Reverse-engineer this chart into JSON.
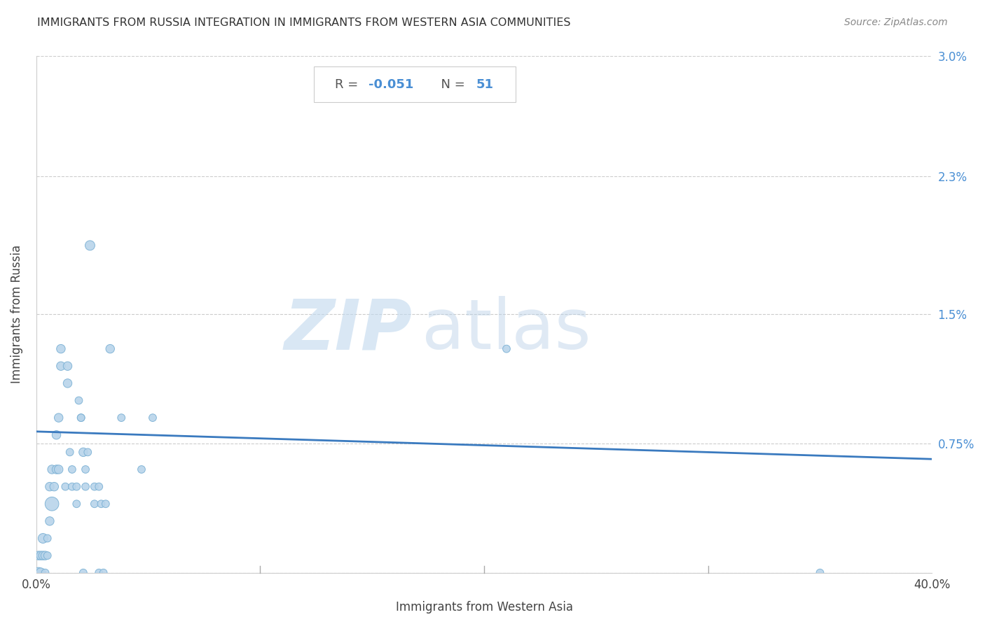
{
  "title": "IMMIGRANTS FROM RUSSIA INTEGRATION IN IMMIGRANTS FROM WESTERN ASIA COMMUNITIES",
  "source": "Source: ZipAtlas.com",
  "xlabel": "Immigrants from Western Asia",
  "ylabel": "Immigrants from Russia",
  "R_label": "R = ",
  "R_val": "-0.051",
  "N_label": "  N = ",
  "N_val": "51",
  "xlim": [
    0.0,
    0.4
  ],
  "ylim": [
    0.0,
    0.03
  ],
  "xticks": [
    0.0,
    0.1,
    0.2,
    0.3,
    0.4
  ],
  "xtick_labels": [
    "0.0%",
    "",
    "",
    "",
    "40.0%"
  ],
  "ytick_vals": [
    0.0,
    0.0075,
    0.015,
    0.023,
    0.03
  ],
  "ytick_labels_right": [
    "",
    "0.75%",
    "1.5%",
    "2.3%",
    "3.0%"
  ],
  "scatter_color": "#b8d4ea",
  "scatter_edge_color": "#7ab0d4",
  "line_color": "#3a7abf",
  "line_intercept": 0.0082,
  "line_slope": -0.004,
  "watermark_zip": "ZIP",
  "watermark_atlas": "atlas",
  "watermark_color": "#d0e4f0",
  "points": [
    [
      0.001,
      0.0
    ],
    [
      0.001,
      0.001
    ],
    [
      0.002,
      0.0
    ],
    [
      0.002,
      0.001
    ],
    [
      0.003,
      0.001
    ],
    [
      0.003,
      0.002
    ],
    [
      0.004,
      0.0
    ],
    [
      0.004,
      0.001
    ],
    [
      0.005,
      0.001
    ],
    [
      0.005,
      0.002
    ],
    [
      0.006,
      0.003
    ],
    [
      0.006,
      0.005
    ],
    [
      0.007,
      0.004
    ],
    [
      0.007,
      0.006
    ],
    [
      0.008,
      0.005
    ],
    [
      0.009,
      0.006
    ],
    [
      0.009,
      0.008
    ],
    [
      0.01,
      0.006
    ],
    [
      0.01,
      0.009
    ],
    [
      0.011,
      0.012
    ],
    [
      0.011,
      0.013
    ],
    [
      0.013,
      0.005
    ],
    [
      0.014,
      0.011
    ],
    [
      0.014,
      0.012
    ],
    [
      0.015,
      0.007
    ],
    [
      0.016,
      0.005
    ],
    [
      0.016,
      0.006
    ],
    [
      0.018,
      0.004
    ],
    [
      0.018,
      0.005
    ],
    [
      0.019,
      0.01
    ],
    [
      0.02,
      0.009
    ],
    [
      0.02,
      0.009
    ],
    [
      0.021,
      0.007
    ],
    [
      0.021,
      0.0
    ],
    [
      0.022,
      0.005
    ],
    [
      0.022,
      0.006
    ],
    [
      0.023,
      0.007
    ],
    [
      0.024,
      0.019
    ],
    [
      0.026,
      0.004
    ],
    [
      0.026,
      0.005
    ],
    [
      0.028,
      0.0
    ],
    [
      0.028,
      0.005
    ],
    [
      0.029,
      0.004
    ],
    [
      0.03,
      0.0
    ],
    [
      0.031,
      0.004
    ],
    [
      0.033,
      0.013
    ],
    [
      0.038,
      0.009
    ],
    [
      0.047,
      0.006
    ],
    [
      0.052,
      0.009
    ],
    [
      0.21,
      0.013
    ],
    [
      0.35,
      0.0
    ]
  ],
  "sizes": [
    120,
    80,
    100,
    80,
    80,
    100,
    60,
    80,
    60,
    60,
    80,
    80,
    200,
    80,
    80,
    80,
    80,
    80,
    80,
    80,
    80,
    60,
    80,
    80,
    60,
    60,
    60,
    60,
    60,
    60,
    60,
    60,
    80,
    60,
    60,
    60,
    60,
    100,
    60,
    60,
    60,
    60,
    60,
    60,
    60,
    80,
    60,
    60,
    60,
    60,
    60
  ]
}
